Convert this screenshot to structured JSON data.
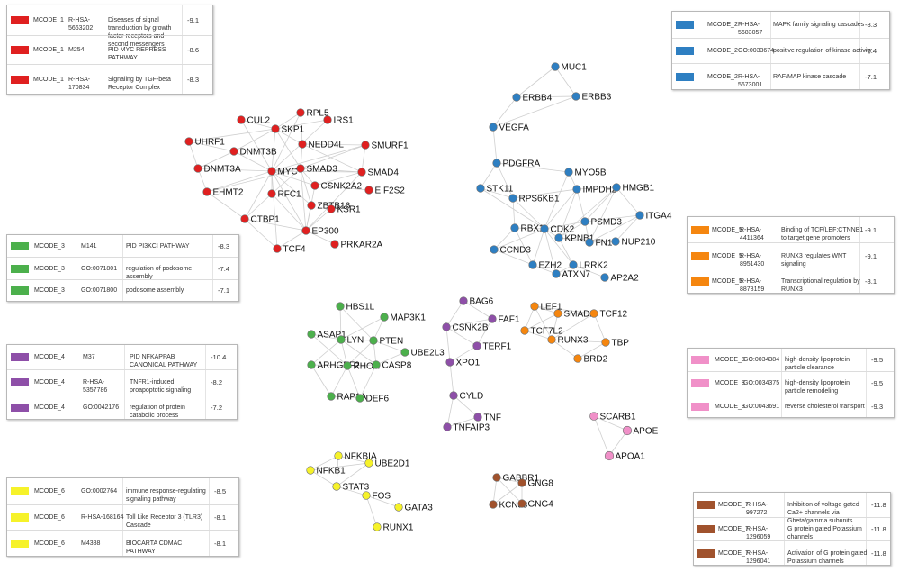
{
  "legends": [
    {
      "id": "mcode1",
      "color": "#e02020",
      "rows": [
        {
          "cluster": "MCODE_1",
          "id": "R-HSA-5663202",
          "term": "Diseases of signal transduction by growth factor receptors and second messengers",
          "log_p": "-9.1"
        },
        {
          "cluster": "MCODE_1",
          "id": "M254",
          "term": "PID MYC REPRESS PATHWAY",
          "log_p": "-8.6"
        },
        {
          "cluster": "MCODE_1",
          "id": "R-HSA-170834",
          "term": "Signaling by TGF-beta Receptor Complex",
          "log_p": "-8.3"
        }
      ]
    },
    {
      "id": "mcode2",
      "color": "#2e7fc2",
      "rows": [
        {
          "cluster": "MCODE_2",
          "id": "R-HSA-5683057",
          "term": "MAPK family signaling cascades",
          "log_p": "-8.3"
        },
        {
          "cluster": "MCODE_2",
          "id": "GO:0033674",
          "term": "positive regulation of kinase activity",
          "log_p": "-7.4"
        },
        {
          "cluster": "MCODE_2",
          "id": "R-HSA-5673001",
          "term": "RAF/MAP kinase cascade",
          "log_p": "-7.1"
        }
      ]
    },
    {
      "id": "mcode3",
      "color": "#4cb04c",
      "rows": [
        {
          "cluster": "MCODE_3",
          "id": "M141",
          "term": "PID PI3KCI PATHWAY",
          "log_p": "-8.3"
        },
        {
          "cluster": "MCODE_3",
          "id": "GO:0071801",
          "term": "regulation of podosome assembly",
          "log_p": "-7.4"
        },
        {
          "cluster": "MCODE_3",
          "id": "GO:0071800",
          "term": "podosome assembly",
          "log_p": "-7.1"
        }
      ]
    },
    {
      "id": "mcode4",
      "color": "#8e4fa8",
      "rows": [
        {
          "cluster": "MCODE_4",
          "id": "M37",
          "term": "PID NFKAPPAB CANONICAL PATHWAY",
          "log_p": "-10.4"
        },
        {
          "cluster": "MCODE_4",
          "id": "R-HSA-5357786",
          "term": "TNFR1-induced proapoptotic signaling",
          "log_p": "-8.2"
        },
        {
          "cluster": "MCODE_4",
          "id": "GO:0042176",
          "term": "regulation of protein catabolic process",
          "log_p": "-7.2"
        }
      ]
    },
    {
      "id": "mcode5",
      "color": "#f5860f",
      "rows": [
        {
          "cluster": "MCODE_5",
          "id": "R-HSA-4411364",
          "term": "Binding of TCF/LEF:CTNNB1 to target gene promoters",
          "log_p": "-9.1"
        },
        {
          "cluster": "MCODE_5",
          "id": "R-HSA-8951430",
          "term": "RUNX3 regulates WNT signaling",
          "log_p": "-9.1"
        },
        {
          "cluster": "MCODE_5",
          "id": "R-HSA-8878159",
          "term": "Transcriptional regulation by RUNX3",
          "log_p": "-8.1"
        }
      ]
    },
    {
      "id": "mcode8",
      "color": "#f090c8",
      "rows": [
        {
          "cluster": "MCODE_8",
          "id": "GO:0034384",
          "term": "high-density lipoprotein particle clearance",
          "log_p": "-9.5"
        },
        {
          "cluster": "MCODE_8",
          "id": "GO:0034375",
          "term": "high-density lipoprotein particle remodeling",
          "log_p": "-9.5"
        },
        {
          "cluster": "MCODE_8",
          "id": "GO:0043691",
          "term": "reverse cholesterol transport",
          "log_p": "-9.3"
        }
      ]
    },
    {
      "id": "mcode6",
      "color": "#f6f22a",
      "rows": [
        {
          "cluster": "MCODE_6",
          "id": "GO:0002764",
          "term": "immune response-regulating signaling pathway",
          "log_p": "-8.5"
        },
        {
          "cluster": "MCODE_6",
          "id": "R-HSA-168164",
          "term": "Toll Like Receptor 3 (TLR3) Cascade",
          "log_p": "-8.1"
        },
        {
          "cluster": "MCODE_6",
          "id": "M4388",
          "term": "BIOCARTA CDMAC PATHWAY",
          "log_p": "-8.1"
        }
      ]
    },
    {
      "id": "mcode7",
      "color": "#a0522d",
      "rows": [
        {
          "cluster": "MCODE_7",
          "id": "R-HSA-997272",
          "term": "Inhibition of voltage gated Ca2+ channels via Gbeta/gamma subunits",
          "log_p": "-11.8"
        },
        {
          "cluster": "MCODE_7",
          "id": "R-HSA-1296059",
          "term": "G protein gated Potassium channels",
          "log_p": "-11.8"
        },
        {
          "cluster": "MCODE_7",
          "id": "R-HSA-1296041",
          "term": "Activation of G protein gated Potassium channels",
          "log_p": "-11.8"
        }
      ]
    }
  ],
  "clusters": [
    {
      "id": "mcode1",
      "color": "#e02020",
      "genes": [
        "RPL5",
        "CUL2",
        "IRS1",
        "SKP1",
        "NEDD4L",
        "SMURF1",
        "UHRF1",
        "DNMT3B",
        "DNMT3A",
        "MYC",
        "SMAD3",
        "SMAD4",
        "EHMT2",
        "RFC1",
        "CSNK2A2",
        "EIF2S2",
        "ZBTB16",
        "KSR1",
        "CTBP1",
        "EP300",
        "TCF4",
        "PRKAR2A"
      ]
    },
    {
      "id": "mcode2",
      "color": "#2e7fc2",
      "genes": [
        "MUC1",
        "ERBB4",
        "ERBB3",
        "VEGFA",
        "PDGFRA",
        "MYO5B",
        "STK11",
        "RPS6KB1",
        "IMPDH2",
        "HMGB1",
        "RBX1",
        "CDK2",
        "PSMD3",
        "ITGA4",
        "KPNB1",
        "FN1",
        "NUP210",
        "CCND3",
        "EZH2",
        "LRRK2",
        "ATXN7",
        "AP2A2"
      ]
    },
    {
      "id": "mcode3",
      "color": "#4cb04c",
      "genes": [
        "HBS1L",
        "MAP3K1",
        "ASAP1",
        "LYN",
        "PTEN",
        "UBE2L3",
        "ARHGEF2",
        "RHOA",
        "CASP8",
        "RAP1A",
        "DEF6"
      ]
    },
    {
      "id": "mcode4",
      "color": "#8e4fa8",
      "genes": [
        "BAG6",
        "FAF1",
        "CSNK2B",
        "TERF1",
        "XPO1",
        "CYLD",
        "TNF",
        "TNFAIP3"
      ]
    },
    {
      "id": "mcode5",
      "color": "#f5860f",
      "genes": [
        "LEF1",
        "SMAD2",
        "TCF12",
        "TCF7L2",
        "RUNX3",
        "TBP",
        "BRD2"
      ]
    },
    {
      "id": "mcode8",
      "color": "#f090c8",
      "genes": [
        "SCARB1",
        "APOE",
        "APOA1"
      ]
    },
    {
      "id": "mcode6",
      "color": "#f6f22a",
      "genes": [
        "NFKBIA",
        "UBE2D1",
        "NFKB1",
        "STAT3",
        "FOS",
        "GATA3",
        "RUNX1"
      ]
    },
    {
      "id": "mcode7",
      "color": "#a0522d",
      "genes": [
        "GABBR1",
        "GNG8",
        "KCNJ3",
        "GNG4"
      ]
    }
  ]
}
